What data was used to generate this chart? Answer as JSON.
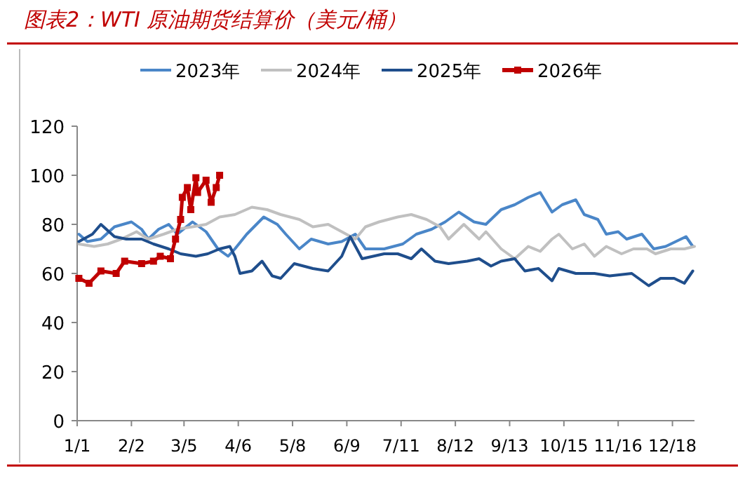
{
  "chart_data": {
    "type": "line",
    "title": "图表2：WTI 原油期货结算价（美元/桶）",
    "xlim": [
      "--01-01",
      "--12-31"
    ],
    "xticks": [
      {
        "value": "--01-01",
        "label": "1/1"
      },
      {
        "value": "--02-02",
        "label": "2/2"
      },
      {
        "value": "--03-05",
        "label": "3/5"
      },
      {
        "value": "--04-06",
        "label": "4/6"
      },
      {
        "value": "--05-08",
        "label": "5/8"
      },
      {
        "value": "--06-09",
        "label": "6/9"
      },
      {
        "value": "--07-11",
        "label": "7/11"
      },
      {
        "value": "--08-12",
        "label": "8/12"
      },
      {
        "value": "--09-13",
        "label": "9/13"
      },
      {
        "value": "--10-15",
        "label": "10/15"
      },
      {
        "value": "--11-16",
        "label": "11/16"
      },
      {
        "value": "--12-18",
        "label": "12/18"
      }
    ],
    "ylim": [
      0,
      120
    ],
    "yticks": [
      0,
      20,
      40,
      60,
      80,
      100,
      120
    ],
    "grid": false,
    "legend": "top",
    "line_style": "solid",
    "series": [
      {
        "name": "2023年",
        "color": "#4a86c8",
        "marker": "none",
        "x": [
          "--01-02",
          "--01-07",
          "--01-15",
          "--01-23",
          "--02-02",
          "--02-08",
          "--02-12",
          "--02-18",
          "--02-24",
          "--03-01",
          "--03-10",
          "--03-18",
          "--03-25",
          "--03-31",
          "--04-04",
          "--04-11",
          "--04-21",
          "--04-29",
          "--05-04",
          "--05-12",
          "--05-19",
          "--05-29",
          "--06-06",
          "--06-14",
          "--06-20",
          "--07-01",
          "--07-12",
          "--07-20",
          "--07-29",
          "--08-06",
          "--08-14",
          "--08-23",
          "--08-30",
          "--09-08",
          "--09-16",
          "--09-24",
          "--10-01",
          "--10-08",
          "--10-14",
          "--10-22",
          "--10-27",
          "--11-04",
          "--11-09",
          "--11-16",
          "--11-21",
          "--11-30",
          "--12-07",
          "--12-14",
          "--12-20",
          "--12-26",
          "--12-30"
        ],
        "values": [
          76,
          73,
          74,
          79,
          81,
          78,
          74,
          78,
          80,
          76,
          81,
          77,
          70,
          67,
          70,
          76,
          83,
          80,
          76,
          70,
          74,
          72,
          73,
          76,
          70,
          70,
          72,
          76,
          78,
          81,
          85,
          81,
          80,
          86,
          88,
          91,
          93,
          85,
          88,
          90,
          84,
          82,
          76,
          77,
          74,
          76,
          70,
          71,
          73,
          75,
          71
        ]
      },
      {
        "name": "2024年",
        "color": "#c0c0c0",
        "marker": "none",
        "x": [
          "--01-02",
          "--01-11",
          "--01-19",
          "--01-27",
          "--02-05",
          "--02-12",
          "--02-21",
          "--03-01",
          "--03-10",
          "--03-18",
          "--03-26",
          "--04-04",
          "--04-14",
          "--04-23",
          "--05-01",
          "--05-12",
          "--05-20",
          "--05-29",
          "--06-06",
          "--06-14",
          "--06-20",
          "--06-28",
          "--07-09",
          "--07-17",
          "--07-26",
          "--08-03",
          "--08-08",
          "--08-17",
          "--08-26",
          "--08-30",
          "--09-08",
          "--09-16",
          "--09-24",
          "--10-01",
          "--10-08",
          "--10-12",
          "--10-20",
          "--10-27",
          "--11-02",
          "--11-09",
          "--11-18",
          "--11-25",
          "--12-03",
          "--12-08",
          "--12-17",
          "--12-25",
          "--12-31"
        ],
        "values": [
          72,
          71,
          72,
          74,
          77,
          74,
          76,
          78,
          79,
          80,
          83,
          84,
          87,
          86,
          84,
          82,
          79,
          80,
          77,
          74,
          79,
          81,
          83,
          84,
          82,
          79,
          74,
          80,
          74,
          77,
          70,
          66,
          71,
          69,
          74,
          76,
          70,
          72,
          67,
          71,
          68,
          70,
          70,
          68,
          70,
          70,
          71
        ]
      },
      {
        "name": "2025年",
        "color": "#1f4e8c",
        "marker": "none",
        "x": [
          "--01-02",
          "--01-10",
          "--01-15",
          "--01-23",
          "--01-30",
          "--02-08",
          "--02-15",
          "--02-24",
          "--03-03",
          "--03-12",
          "--03-19",
          "--03-26",
          "--04-01",
          "--04-04",
          "--04-07",
          "--04-14",
          "--04-20",
          "--04-26",
          "--05-01",
          "--05-09",
          "--05-20",
          "--05-29",
          "--06-06",
          "--06-11",
          "--06-18",
          "--07-01",
          "--07-09",
          "--07-17",
          "--07-23",
          "--07-31",
          "--08-08",
          "--08-19",
          "--08-26",
          "--09-02",
          "--09-08",
          "--09-16",
          "--09-22",
          "--09-30",
          "--10-08",
          "--10-12",
          "--10-22",
          "--11-02",
          "--11-11",
          "--11-24",
          "--12-04",
          "--12-11",
          "--12-19",
          "--12-25",
          "--12-30"
        ],
        "values": [
          73,
          76,
          80,
          75,
          74,
          74,
          72,
          70,
          68,
          67,
          68,
          70,
          71,
          67,
          60,
          61,
          65,
          59,
          58,
          64,
          62,
          61,
          67,
          75,
          66,
          68,
          68,
          66,
          70,
          65,
          64,
          65,
          66,
          63,
          65,
          66,
          61,
          62,
          57,
          62,
          60,
          60,
          59,
          60,
          55,
          58,
          58,
          56,
          61
        ]
      },
      {
        "name": "2026年",
        "color": "#c00000",
        "marker": "square",
        "x": [
          "--01-02",
          "--01-08",
          "--01-15",
          "--01-24",
          "--01-29",
          "--02-08",
          "--02-15",
          "--02-19",
          "--02-25",
          "--02-28",
          "--03-03",
          "--03-04",
          "--03-07",
          "--03-09",
          "--03-12",
          "--03-13",
          "--03-18",
          "--03-21",
          "--03-24",
          "--03-26"
        ],
        "values": [
          58,
          56,
          61,
          60,
          65,
          64,
          65,
          67,
          66,
          74,
          82,
          91,
          95,
          86,
          99,
          93,
          98,
          89,
          95,
          100
        ]
      }
    ]
  }
}
